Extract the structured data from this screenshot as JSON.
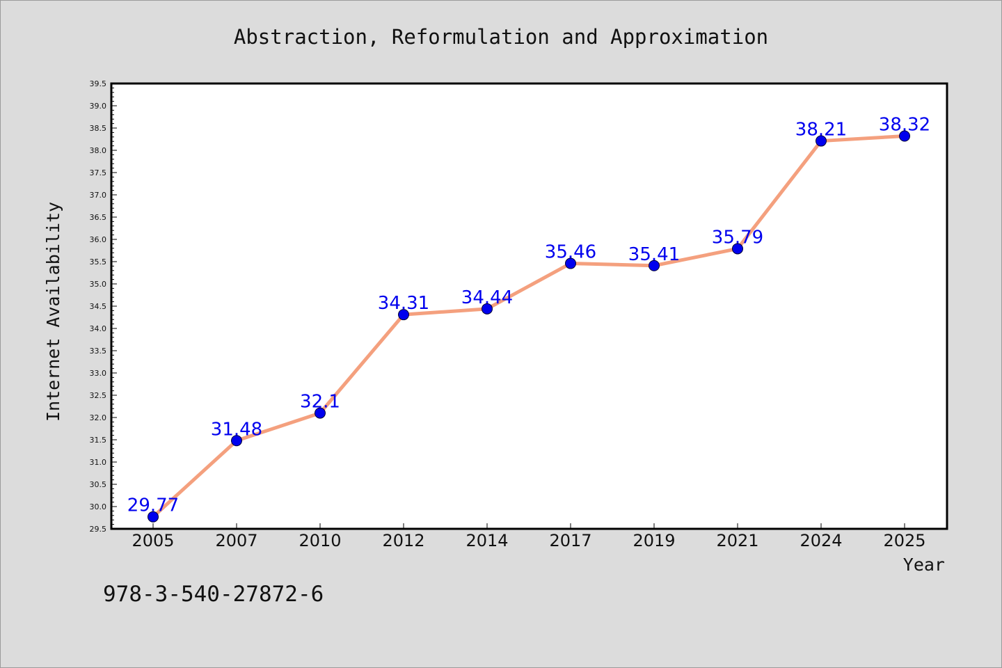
{
  "chart_data": {
    "type": "line",
    "title": "Abstraction, Reformulation and Approximation",
    "xlabel": "Year",
    "ylabel": "Internet Availability",
    "categories": [
      "2005",
      "2007",
      "2010",
      "2012",
      "2014",
      "2017",
      "2019",
      "2021",
      "2024",
      "2025"
    ],
    "series": [
      {
        "values": [
          29.77,
          31.48,
          32.1,
          34.31,
          34.44,
          35.46,
          35.41,
          35.79,
          38.21,
          38.32
        ]
      }
    ],
    "data_labels": [
      "29.77",
      "31.48",
      "32.1",
      "34.31",
      "34.44",
      "35.46",
      "35.41",
      "35.79",
      "38.21",
      "38.32"
    ],
    "ylim": [
      29.5,
      39.5
    ],
    "yticks": [
      "29.5",
      "30.0",
      "30.5",
      "31.0",
      "31.5",
      "32.0",
      "32.5",
      "33.0",
      "33.5",
      "34.0",
      "34.5",
      "35.0",
      "35.5",
      "36.0",
      "36.5",
      "37.0",
      "37.5",
      "38.0",
      "38.5",
      "39.0",
      "39.5"
    ],
    "grid": false,
    "line_color": "#f4a07e",
    "marker_color": "#0000ee",
    "label_color": "#0000ee"
  },
  "footnote": "978-3-540-27872-6"
}
